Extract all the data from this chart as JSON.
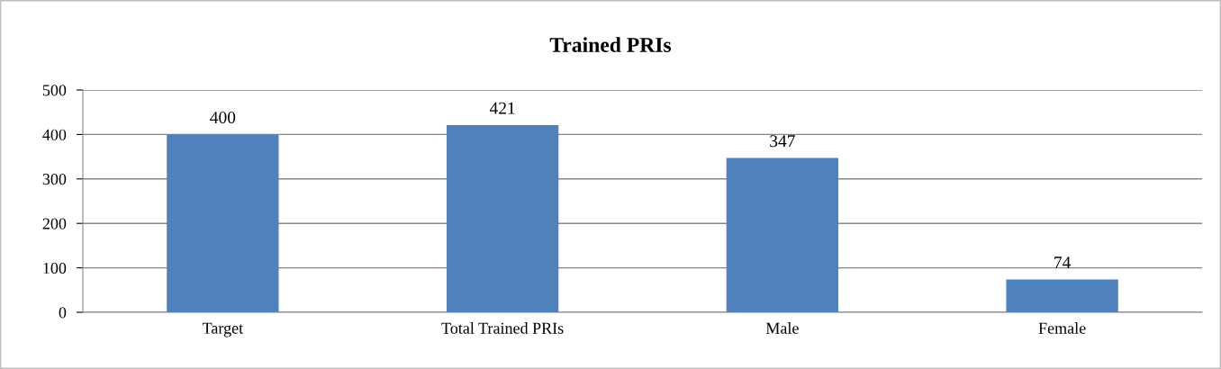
{
  "chart_data": {
    "type": "bar",
    "title": "Trained PRIs",
    "categories": [
      "Target",
      "Total Trained PRIs",
      "Male",
      "Female"
    ],
    "values": [
      400,
      421,
      347,
      74
    ],
    "color": "#4f81bd",
    "ylim": [
      0,
      500
    ],
    "yticks": [
      0,
      100,
      200,
      300,
      400,
      500
    ],
    "grid": "y",
    "data_labels": true,
    "legend": false
  }
}
